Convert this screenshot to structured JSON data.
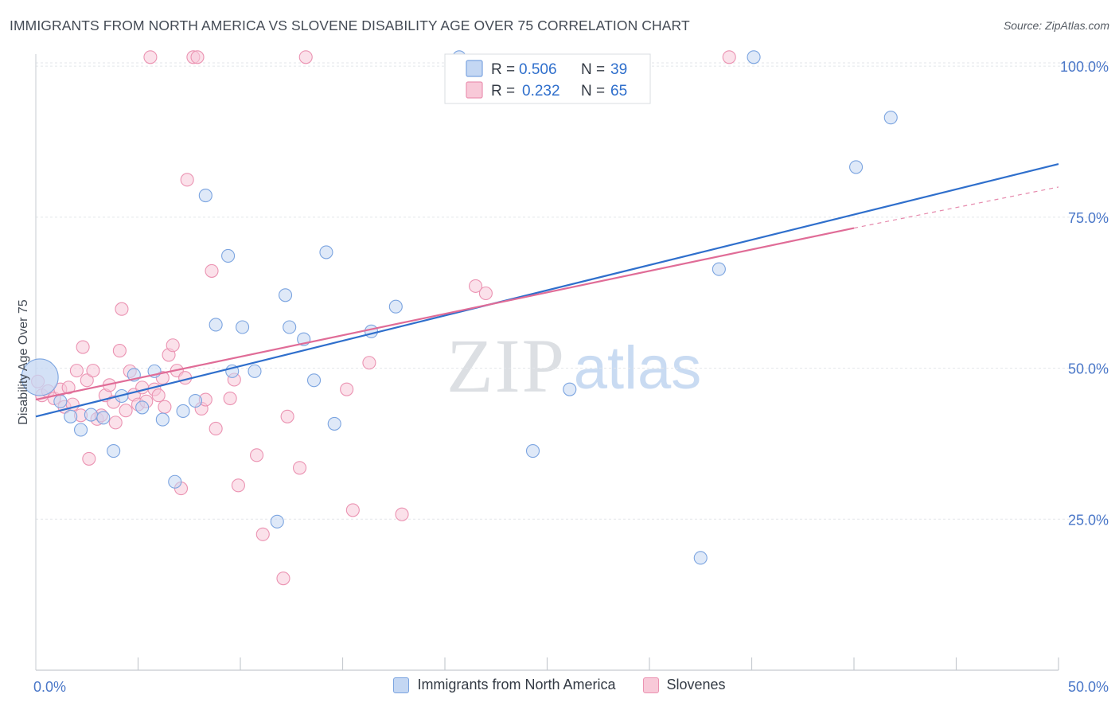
{
  "title": "IMMIGRANTS FROM NORTH AMERICA VS SLOVENE DISABILITY AGE OVER 75 CORRELATION CHART",
  "source": "Source: ZipAtlas.com",
  "watermark": {
    "zip": "ZIP",
    "atlas": "atlas"
  },
  "colors": {
    "blue_fill": "#c4d7f3",
    "blue_stroke": "#7ba4e0",
    "blue_line": "#2f6fcc",
    "pink_fill": "#f8c9d8",
    "pink_stroke": "#eb93b2",
    "pink_line": "#e06c97",
    "tick_text": "#4a77c8",
    "grid": "#e3e6ea"
  },
  "legend_top": {
    "rows": [
      {
        "r_label": "R =",
        "r_value": "0.506",
        "n_label": "N =",
        "n_value": "39"
      },
      {
        "r_label": "R =",
        "r_value": "0.232",
        "n_label": "N =",
        "n_value": "65"
      }
    ]
  },
  "chart_data": {
    "type": "scatter",
    "ylabel": "Disability Age Over 75",
    "xlim": [
      0,
      50
    ],
    "ylim": [
      0,
      102
    ],
    "x_tick_labels": [
      "0.0%",
      "50.0%"
    ],
    "x_minor_ticks": [
      5,
      10,
      15,
      20,
      25,
      30,
      35,
      40,
      45
    ],
    "y_ticks": [
      25,
      50,
      75,
      100
    ],
    "y_tick_labels": [
      "25.0%",
      "50.0%",
      "75.0%",
      "100.0%"
    ],
    "legend_position": "bottom",
    "series": [
      {
        "name": "Immigrants from North America",
        "color_key": "blue",
        "regression": {
          "x": [
            0,
            50
          ],
          "y": [
            42,
            83.8
          ]
        },
        "points": [
          {
            "x": 0.2,
            "y": 48.5,
            "big": true
          },
          {
            "x": 1.2,
            "y": 44.5
          },
          {
            "x": 1.7,
            "y": 42
          },
          {
            "x": 2.2,
            "y": 39.8
          },
          {
            "x": 2.7,
            "y": 42.3
          },
          {
            "x": 3.3,
            "y": 41.8
          },
          {
            "x": 3.8,
            "y": 36.3
          },
          {
            "x": 4.2,
            "y": 45.4
          },
          {
            "x": 4.8,
            "y": 48.9
          },
          {
            "x": 5.2,
            "y": 43.5
          },
          {
            "x": 5.8,
            "y": 49.5
          },
          {
            "x": 6.2,
            "y": 41.5
          },
          {
            "x": 6.8,
            "y": 31.2
          },
          {
            "x": 7.2,
            "y": 42.9
          },
          {
            "x": 7.8,
            "y": 44.6
          },
          {
            "x": 8.3,
            "y": 78.6
          },
          {
            "x": 8.8,
            "y": 57.2
          },
          {
            "x": 9.4,
            "y": 68.6
          },
          {
            "x": 9.6,
            "y": 49.5
          },
          {
            "x": 10.1,
            "y": 56.8
          },
          {
            "x": 10.7,
            "y": 49.5
          },
          {
            "x": 11.8,
            "y": 24.6
          },
          {
            "x": 12.2,
            "y": 62.1
          },
          {
            "x": 12.4,
            "y": 56.8
          },
          {
            "x": 13.1,
            "y": 54.8
          },
          {
            "x": 13.6,
            "y": 48
          },
          {
            "x": 14.2,
            "y": 69.2
          },
          {
            "x": 14.6,
            "y": 40.8
          },
          {
            "x": 16.4,
            "y": 56.1
          },
          {
            "x": 17.6,
            "y": 60.2
          },
          {
            "x": 20.7,
            "y": 101.5
          },
          {
            "x": 24.3,
            "y": 36.3
          },
          {
            "x": 26.1,
            "y": 46.5
          },
          {
            "x": 32.5,
            "y": 18.6
          },
          {
            "x": 33.4,
            "y": 66.4
          },
          {
            "x": 35.1,
            "y": 101.5
          },
          {
            "x": 40.1,
            "y": 83.3
          },
          {
            "x": 41.8,
            "y": 91.5
          }
        ]
      },
      {
        "name": "Slovenes",
        "color_key": "pink",
        "regression": {
          "x": [
            0,
            40
          ],
          "y": [
            44.8,
            73.2
          ]
        },
        "regression_dashed": {
          "x": [
            40,
            50
          ],
          "y": [
            73.2,
            80
          ]
        },
        "points": [
          {
            "x": 0.1,
            "y": 47.8
          },
          {
            "x": 0.3,
            "y": 45.5
          },
          {
            "x": 0.6,
            "y": 46.2
          },
          {
            "x": 0.9,
            "y": 45
          },
          {
            "x": 1.2,
            "y": 46.5
          },
          {
            "x": 1.4,
            "y": 43.6
          },
          {
            "x": 1.6,
            "y": 46.8
          },
          {
            "x": 1.8,
            "y": 44
          },
          {
            "x": 2,
            "y": 49.6
          },
          {
            "x": 2.2,
            "y": 42.2
          },
          {
            "x": 2.3,
            "y": 53.5
          },
          {
            "x": 2.5,
            "y": 48
          },
          {
            "x": 2.6,
            "y": 35
          },
          {
            "x": 2.8,
            "y": 49.6
          },
          {
            "x": 3,
            "y": 41.6
          },
          {
            "x": 3.2,
            "y": 42.2
          },
          {
            "x": 3.4,
            "y": 45.5
          },
          {
            "x": 3.6,
            "y": 47.2
          },
          {
            "x": 3.8,
            "y": 44.4
          },
          {
            "x": 3.9,
            "y": 41
          },
          {
            "x": 4.1,
            "y": 52.9
          },
          {
            "x": 4.2,
            "y": 59.8
          },
          {
            "x": 4.4,
            "y": 43
          },
          {
            "x": 4.6,
            "y": 49.5
          },
          {
            "x": 4.8,
            "y": 45.6
          },
          {
            "x": 5,
            "y": 44
          },
          {
            "x": 5.2,
            "y": 46.8
          },
          {
            "x": 5.4,
            "y": 44.5
          },
          {
            "x": 5.6,
            "y": 101.5
          },
          {
            "x": 5.8,
            "y": 46.5
          },
          {
            "x": 6,
            "y": 45.5
          },
          {
            "x": 6.2,
            "y": 48.4
          },
          {
            "x": 6.3,
            "y": 43.6
          },
          {
            "x": 6.5,
            "y": 52.2
          },
          {
            "x": 6.7,
            "y": 53.8
          },
          {
            "x": 6.9,
            "y": 49.6
          },
          {
            "x": 7.1,
            "y": 30.1
          },
          {
            "x": 7.3,
            "y": 48.4
          },
          {
            "x": 7.4,
            "y": 81.2
          },
          {
            "x": 7.7,
            "y": 101.5
          },
          {
            "x": 7.9,
            "y": 101.5
          },
          {
            "x": 8.1,
            "y": 43.3
          },
          {
            "x": 8.3,
            "y": 44.8
          },
          {
            "x": 8.6,
            "y": 66.1
          },
          {
            "x": 8.8,
            "y": 40
          },
          {
            "x": 9.5,
            "y": 45
          },
          {
            "x": 9.7,
            "y": 48.1
          },
          {
            "x": 9.9,
            "y": 30.6
          },
          {
            "x": 10.8,
            "y": 35.6
          },
          {
            "x": 11.1,
            "y": 22.5
          },
          {
            "x": 12.1,
            "y": 15.2
          },
          {
            "x": 12.3,
            "y": 42
          },
          {
            "x": 12.9,
            "y": 33.5
          },
          {
            "x": 13.2,
            "y": 101.5
          },
          {
            "x": 15.2,
            "y": 46.5
          },
          {
            "x": 15.5,
            "y": 26.5
          },
          {
            "x": 16.3,
            "y": 50.9
          },
          {
            "x": 17.9,
            "y": 25.8
          },
          {
            "x": 21.5,
            "y": 63.6
          },
          {
            "x": 22,
            "y": 62.4
          },
          {
            "x": 33.9,
            "y": 101.5
          }
        ]
      }
    ]
  },
  "legend_bottom": [
    {
      "label": "Immigrants from North America",
      "color_key": "blue"
    },
    {
      "label": "Slovenes",
      "color_key": "pink"
    }
  ]
}
